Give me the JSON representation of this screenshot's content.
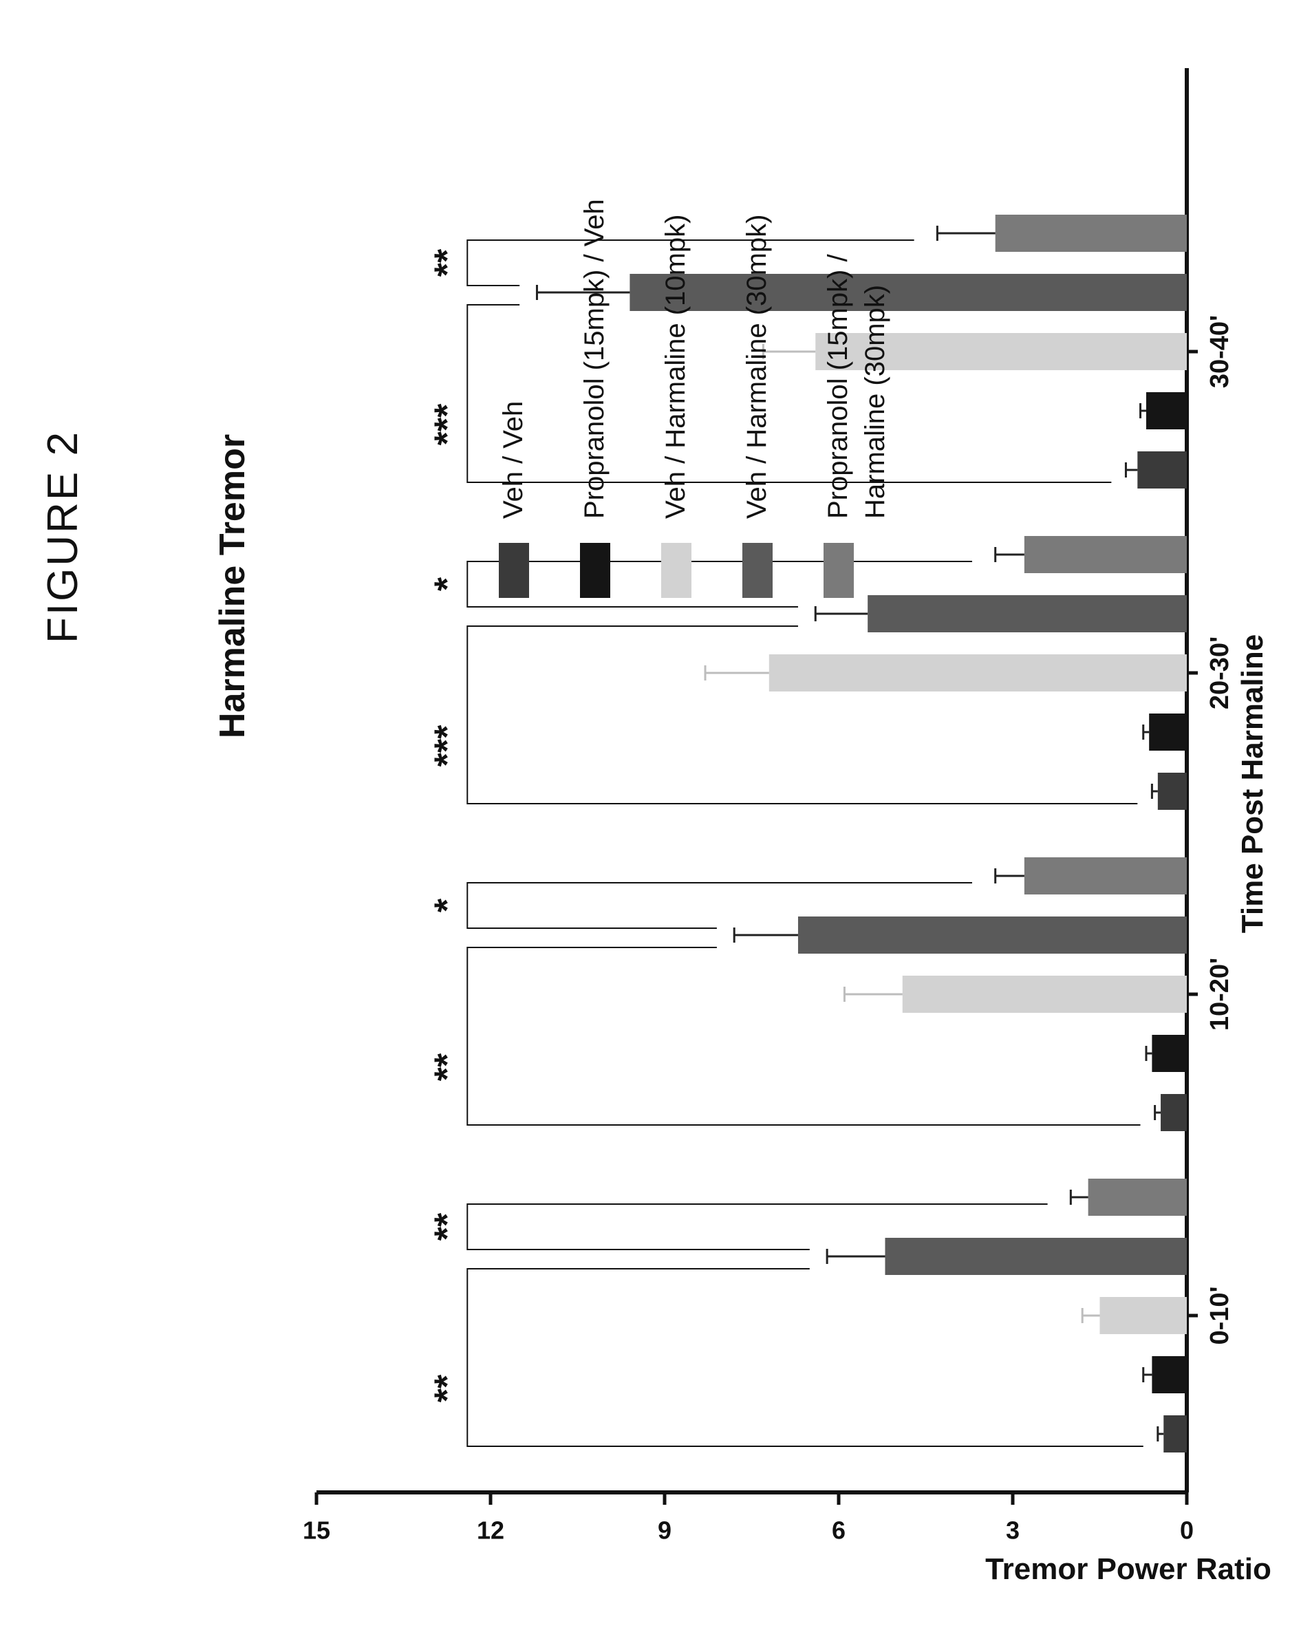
{
  "figure_label": "FIGURE 2",
  "chart_data": {
    "type": "bar",
    "title": "Harmaline Tremor",
    "xlabel": "Time Post Harmaline",
    "ylabel": "Tremor Power Ratio",
    "ylim": [
      0,
      15
    ],
    "yticks": [
      "0",
      "3",
      "6",
      "9",
      "12",
      "15"
    ],
    "grid": false,
    "legend_position": "right",
    "categories": [
      "0-10'",
      "10-20'",
      "20-30'",
      "30-40'"
    ],
    "series": [
      {
        "name": "Veh / Veh",
        "color": "#3a3a3a",
        "values": [
          0.4,
          0.45,
          0.5,
          0.85
        ],
        "errors": [
          0.1,
          0.1,
          0.1,
          0.2
        ]
      },
      {
        "name": "Propranolol (15mpk) / Veh",
        "color": "#151515",
        "values": [
          0.6,
          0.6,
          0.65,
          0.7
        ],
        "errors": [
          0.15,
          0.1,
          0.1,
          0.1
        ]
      },
      {
        "name": "Veh / Harmaline (10mpk)",
        "color": "#d2d2d2",
        "values": [
          1.5,
          4.9,
          7.2,
          6.4
        ],
        "errors": [
          0.3,
          1.0,
          1.1,
          0.9
        ]
      },
      {
        "name": "Veh / Harmaline (30mpk)",
        "color": "#5a5a5a",
        "values": [
          5.2,
          6.7,
          5.5,
          9.6
        ],
        "errors": [
          1.0,
          1.1,
          0.9,
          1.6
        ]
      },
      {
        "name": "Propranolol (15mpk) / Harmaline (30mpk)",
        "color": "#7a7a7a",
        "values": [
          1.7,
          2.8,
          2.8,
          3.3
        ],
        "errors": [
          0.3,
          0.5,
          0.5,
          1.0
        ]
      }
    ],
    "significance": [
      {
        "group": 0,
        "first": "**",
        "second": "**"
      },
      {
        "group": 1,
        "first": "**",
        "second": "*"
      },
      {
        "group": 2,
        "first": "***",
        "second": "*"
      },
      {
        "group": 3,
        "first": "***",
        "second": "**"
      }
    ],
    "legend": {
      "items": [
        {
          "lines": [
            "Veh / Veh"
          ]
        },
        {
          "lines": [
            "Propranolol (15mpk) / Veh"
          ]
        },
        {
          "lines": [
            "Veh / Harmaline (10mpk)"
          ]
        },
        {
          "lines": [
            "Veh / Harmaline (30mpk)"
          ]
        },
        {
          "lines": [
            "Propranolol (15mpk) /",
            "Harmaline (30mpk)"
          ]
        }
      ]
    }
  }
}
